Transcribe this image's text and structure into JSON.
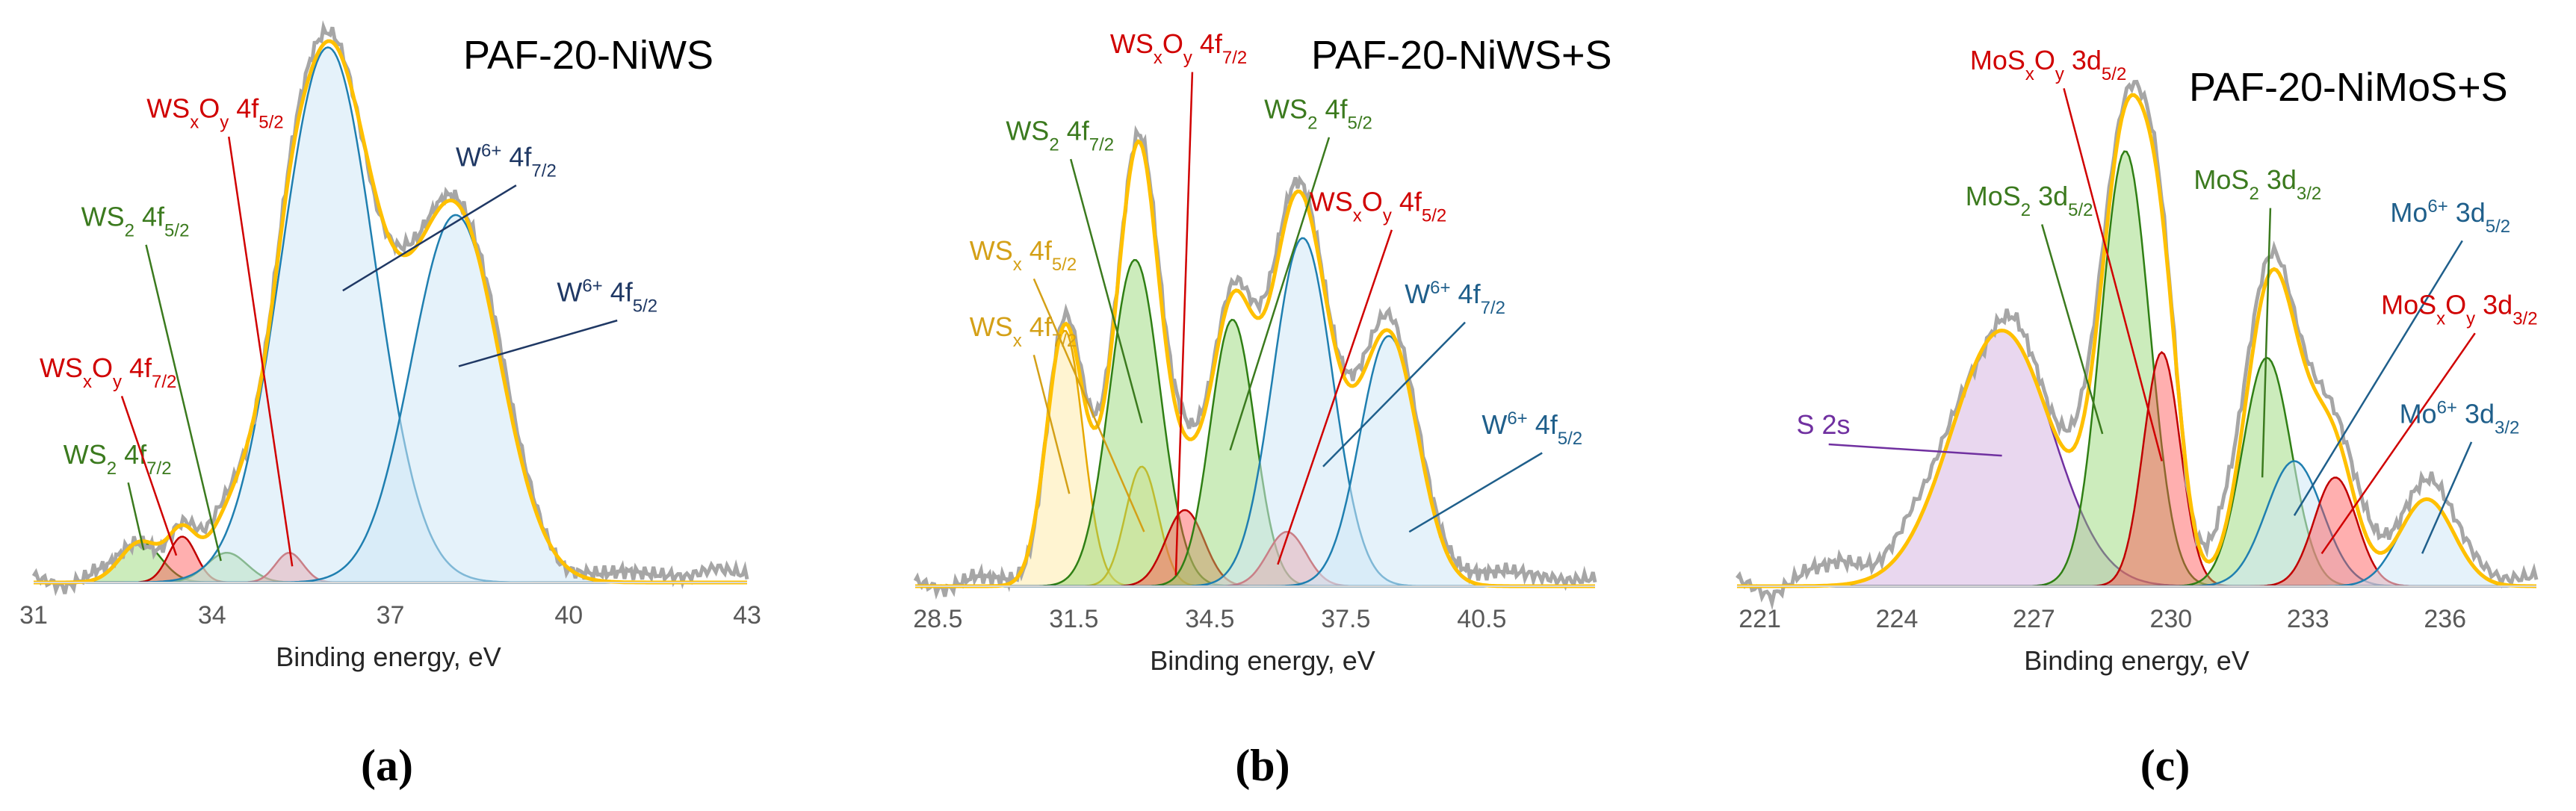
{
  "figure": {
    "captions": [
      "(a)",
      "(b)",
      "(c)"
    ],
    "colors": {
      "experimental": "#a6a6a6",
      "envelope": "#ffc000",
      "green_fill": "#8fd46b",
      "green_line": "#2f7f14",
      "red_fill": "#ff4d4d",
      "red_line": "#c00000",
      "blue_fill": "#cfe7f5",
      "blue_line": "#1f7fb0",
      "yellow_fill": "#ffe79a",
      "yellow_line": "#e6a800",
      "purple_fill": "#cfa6dc",
      "purple_line": "#7030a0",
      "label_green": "#3b7a1e",
      "label_red": "#d00000",
      "label_navy": "#1f3864",
      "label_blue": "#1f5f8b",
      "label_gold": "#d4a017",
      "label_purple": "#7030a0"
    }
  },
  "chart_data": [
    {
      "type": "area",
      "title": "PAF-20-NiWS",
      "xlabel": "Binding energy, eV",
      "ylabel": "",
      "xlim": [
        31,
        43
      ],
      "ylim": [
        0,
        1.05
      ],
      "xticks": [
        "31",
        "34",
        "37",
        "40",
        "43"
      ],
      "components": [
        {
          "name": "WS2 4f7/2",
          "label_main": "WS",
          "label_sub1": "2",
          "label_sup": "",
          "label_sub2": "",
          "label_tail": " 4f",
          "label_sub3": "7/2",
          "center": 32.8,
          "height": 0.075,
          "width": 0.8,
          "fill": "green",
          "label_color": "label_green",
          "label_x": 31.5,
          "label_y": 0.22,
          "target_x": 32.85,
          "target_y": 0.06
        },
        {
          "name": "WSxOy 4f7/2",
          "label_main": "WS",
          "label_sub1": "x",
          "label_sup": "",
          "label_sub2": "",
          "label_tail": "O",
          "label_sub3": "y",
          "label_extra": " 4f",
          "label_sub4": "7/2",
          "center": 33.5,
          "height": 0.085,
          "width": 0.55,
          "fill": "red",
          "label_color": "label_red",
          "label_x": 31.1,
          "label_y": 0.38,
          "target_x": 33.4,
          "target_y": 0.05
        },
        {
          "name": "WS2 4f5/2",
          "label_main": "WS",
          "label_sub1": "2",
          "label_sup": "",
          "label_sub2": "",
          "label_tail": " 4f",
          "label_sub3": "5/2",
          "center": 34.25,
          "height": 0.055,
          "width": 0.8,
          "fill": "green",
          "label_color": "label_green",
          "label_x": 31.8,
          "label_y": 0.66,
          "target_x": 34.15,
          "target_y": 0.04
        },
        {
          "name": "WSxOy 4f5/2",
          "label_main": "WS",
          "label_sub1": "x",
          "label_sup": "",
          "label_sub2": "",
          "label_tail": "O",
          "label_sub3": "y",
          "label_extra": " 4f",
          "label_sub4": "5/2",
          "center": 35.3,
          "height": 0.055,
          "width": 0.55,
          "fill": "red",
          "label_color": "label_red",
          "label_x": 32.9,
          "label_y": 0.86,
          "target_x": 35.35,
          "target_y": 0.03
        },
        {
          "name": "W6+ 4f7/2",
          "label_main": "W",
          "label_sub1": "",
          "label_sup": "6+",
          "label_sub2": "",
          "label_tail": " 4f",
          "label_sub3": "7/2",
          "center": 35.95,
          "height": 0.99,
          "width": 1.85,
          "fill": "blue",
          "label_color": "label_navy",
          "label_x": 38.1,
          "label_y": 0.77,
          "target_x": 36.2,
          "target_y": 0.54
        },
        {
          "name": "W6+ 4f5/2",
          "label_main": "W",
          "label_sub1": "",
          "label_sup": "6+",
          "label_sub2": "",
          "label_tail": " 4f",
          "label_sub3": "5/2",
          "center": 38.1,
          "height": 0.68,
          "width": 1.75,
          "fill": "blue",
          "label_color": "label_navy",
          "label_x": 39.8,
          "label_y": 0.52,
          "target_x": 38.15,
          "target_y": 0.4
        }
      ],
      "experimental_offsets": [
        0.012,
        -0.01,
        0.018,
        0.005,
        -0.012,
        0.01,
        0.022,
        -0.004,
        0.015,
        0.025,
        0.01,
        -0.015,
        0.02,
        0.012,
        0.008,
        0.03,
        0.018,
        -0.006,
        0.012,
        0.02,
        0.016,
        0.01,
        0.028,
        0.014
      ]
    },
    {
      "type": "area",
      "title": "PAF-20-NiWS+S",
      "xlabel": "Binding energy, eV",
      "ylabel": "",
      "xlim": [
        28,
        43
      ],
      "ylim": [
        0,
        1.05
      ],
      "xticks": [
        "28.5",
        "31.5",
        "34.5",
        "37.5",
        "40.5"
      ],
      "xtick_values": [
        28.5,
        31.5,
        34.5,
        37.5,
        40.5
      ],
      "components": [
        {
          "name": "WSx 4f7/2",
          "label_main": "WS",
          "label_sub1": "x",
          "label_sup": "",
          "label_sub2": "",
          "label_tail": " 4f",
          "label_sub3": "7/2",
          "center": 31.3,
          "height": 0.47,
          "width": 0.95,
          "fill": "yellow",
          "label_color": "label_gold",
          "label_x": 29.2,
          "label_y": 0.46,
          "target_x": 31.4,
          "target_y": 0.17
        },
        {
          "name": "WSx 4f5/2",
          "label_main": "WS",
          "label_sub1": "x",
          "label_sup": "",
          "label_sub2": "",
          "label_tail": " 4f",
          "label_sub3": "5/2",
          "center": 33.0,
          "height": 0.22,
          "width": 0.85,
          "fill": "yellow",
          "label_color": "label_gold",
          "label_x": 29.2,
          "label_y": 0.6,
          "target_x": 33.05,
          "target_y": 0.1
        },
        {
          "name": "WS2 4f7/2",
          "label_main": "WS",
          "label_sub1": "2",
          "label_sup": "",
          "label_sub2": "",
          "label_tail": " 4f",
          "label_sub3": "7/2",
          "center": 32.85,
          "height": 0.6,
          "width": 1.3,
          "fill": "green",
          "label_color": "label_green",
          "label_x": 30.0,
          "label_y": 0.82,
          "target_x": 33.0,
          "target_y": 0.3
        },
        {
          "name": "WSxOy 4f7/2",
          "label_main": "WS",
          "label_sub1": "x",
          "label_sup": "",
          "label_sub2": "",
          "label_tail": "O",
          "label_sub3": "y",
          "label_extra": " 4f",
          "label_sub4": "7/2",
          "center": 33.95,
          "height": 0.14,
          "width": 1.0,
          "fill": "red",
          "label_color": "label_red",
          "label_x": 32.3,
          "label_y": 0.98,
          "target_x": 33.75,
          "target_y": 0.02
        },
        {
          "name": "WS2 4f5/2",
          "label_main": "WS",
          "label_sub1": "2",
          "label_sup": "",
          "label_sub2": "",
          "label_tail": " 4f",
          "label_sub3": "5/2",
          "center": 35.0,
          "height": 0.49,
          "width": 1.15,
          "fill": "green",
          "label_color": "label_green",
          "label_x": 35.7,
          "label_y": 0.86,
          "target_x": 34.95,
          "target_y": 0.25
        },
        {
          "name": "WSxOy 4f5/2",
          "label_main": "WS",
          "label_sub1": "x",
          "label_sup": "",
          "label_sub2": "",
          "label_tail": "O",
          "label_sub3": "y",
          "label_extra": " 4f",
          "label_sub4": "5/2",
          "center": 36.2,
          "height": 0.1,
          "width": 1.0,
          "fill": "red",
          "label_color": "label_red",
          "label_x": 36.7,
          "label_y": 0.69,
          "target_x": 36.0,
          "target_y": 0.04
        },
        {
          "name": "W6+ 4f7/2",
          "label_main": "W",
          "label_sub1": "",
          "label_sup": "6+",
          "label_sub2": "",
          "label_tail": " 4f",
          "label_sub3": "7/2",
          "center": 36.55,
          "height": 0.64,
          "width": 1.55,
          "fill": "blue",
          "label_color": "label_blue",
          "label_x": 38.8,
          "label_y": 0.52,
          "target_x": 37.0,
          "target_y": 0.22
        },
        {
          "name": "W6+ 4f5/2",
          "label_main": "W",
          "label_sub1": "",
          "label_sup": "6+",
          "label_sub2": "",
          "label_tail": " 4f",
          "label_sub3": "5/2",
          "center": 38.45,
          "height": 0.46,
          "width": 1.5,
          "fill": "blue",
          "label_color": "label_blue",
          "label_x": 40.5,
          "label_y": 0.28,
          "target_x": 38.9,
          "target_y": 0.1
        }
      ],
      "experimental_offsets": [
        0.01,
        -0.008,
        0.02,
        0.012,
        -0.01,
        0.015,
        0.03,
        0.005,
        0.02,
        0.035,
        0.012,
        0.02,
        0.03,
        0.018,
        0.01,
        0.025,
        0.03,
        0.02,
        0.015,
        0.02,
        0.03,
        0.02,
        0.01,
        0.015
      ]
    },
    {
      "type": "area",
      "title": "PAF-20-NiMoS+S",
      "xlabel": "Binding energy, eV",
      "ylabel": "",
      "xlim": [
        220.5,
        238
      ],
      "ylim": [
        0,
        1.05
      ],
      "xticks": [
        "221",
        "224",
        "227",
        "230",
        "233",
        "236"
      ],
      "xtick_values": [
        221,
        224,
        227,
        230,
        233,
        236
      ],
      "components": [
        {
          "name": "S 2s",
          "label_main": "S 2s",
          "label_sub1": "",
          "label_sup": "",
          "label_sub2": "",
          "label_tail": "",
          "label_sub3": "",
          "center": 226.3,
          "height": 0.47,
          "width": 2.6,
          "fill": "purple",
          "label_color": "label_purple",
          "label_x": 221.8,
          "label_y": 0.28,
          "target_x": 226.3,
          "target_y": 0.24
        },
        {
          "name": "MoS2 3d5/2",
          "label_main": "MoS",
          "label_sub1": "2",
          "label_sup": "",
          "label_sub2": "",
          "label_tail": " 3d",
          "label_sub3": "5/2",
          "center": 229.0,
          "height": 0.8,
          "width": 1.25,
          "fill": "green",
          "label_color": "label_green",
          "label_x": 225.5,
          "label_y": 0.7,
          "target_x": 228.5,
          "target_y": 0.28
        },
        {
          "name": "MoSxOy 3d5/2",
          "label_main": "MoS",
          "label_sub1": "x",
          "label_sup": "",
          "label_sub2": "",
          "label_tail": "O",
          "label_sub3": "y",
          "label_extra": " 3d",
          "label_sub4": "5/2",
          "center": 229.8,
          "height": 0.43,
          "width": 0.95,
          "fill": "red",
          "label_color": "label_red",
          "label_x": 225.6,
          "label_y": 0.95,
          "target_x": 229.8,
          "target_y": 0.23
        },
        {
          "name": "MoS2 3d3/2",
          "label_main": "MoS",
          "label_sub1": "2",
          "label_sup": "",
          "label_sub2": "",
          "label_tail": " 3d",
          "label_sub3": "3/2",
          "center": 232.1,
          "height": 0.42,
          "width": 1.25,
          "fill": "green",
          "label_color": "label_green",
          "label_x": 230.5,
          "label_y": 0.73,
          "target_x": 232.0,
          "target_y": 0.2
        },
        {
          "name": "Mo6+ 3d5/2",
          "label_main": "Mo",
          "label_sub1": "",
          "label_sup": "6+",
          "label_sub2": "",
          "label_tail": " 3d",
          "label_sub3": "5/2",
          "center": 232.7,
          "height": 0.23,
          "width": 1.45,
          "fill": "blue",
          "label_color": "label_blue",
          "label_x": 234.8,
          "label_y": 0.67,
          "target_x": 232.7,
          "target_y": 0.13
        },
        {
          "name": "MoSxOy 3d3/2",
          "label_main": "MoS",
          "label_sub1": "x",
          "label_sup": "",
          "label_sub2": "",
          "label_tail": "O",
          "label_sub3": "y",
          "label_extra": " 3d",
          "label_sub4": "3/2",
          "center": 233.6,
          "height": 0.2,
          "width": 1.1,
          "fill": "red",
          "label_color": "label_red",
          "label_x": 234.6,
          "label_y": 0.5,
          "target_x": 233.3,
          "target_y": 0.06
        },
        {
          "name": "Mo6+ 3d3/2",
          "label_main": "Mo",
          "label_sub1": "",
          "label_sup": "6+",
          "label_sub2": "",
          "label_tail": " 3d",
          "label_sub3": "3/2",
          "center": 235.6,
          "height": 0.16,
          "width": 1.4,
          "fill": "blue",
          "label_color": "label_blue",
          "label_x": 235.0,
          "label_y": 0.3,
          "target_x": 235.5,
          "target_y": 0.06
        }
      ],
      "experimental_offsets": [
        0.015,
        -0.02,
        0.03,
        0.045,
        0.02,
        0.05,
        0.03,
        -0.01,
        0.04,
        0.02,
        0.06,
        0.015,
        0.03,
        -0.01,
        0.07,
        0.04,
        0.02,
        0.03,
        0.05,
        0.02,
        0.04,
        0.03,
        0.01,
        0.02
      ]
    }
  ]
}
